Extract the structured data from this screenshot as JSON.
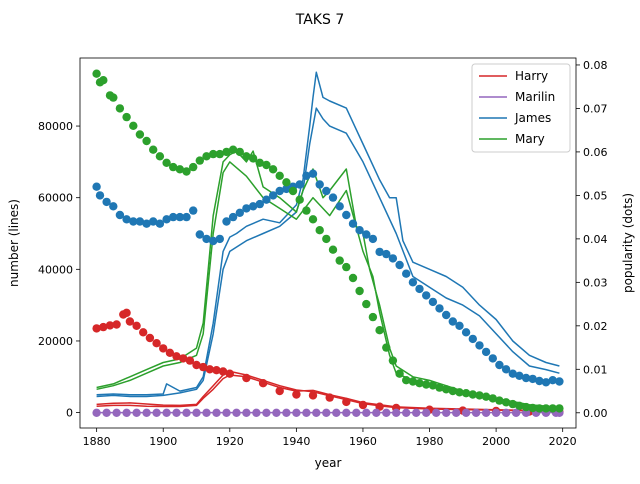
{
  "chart_data": {
    "type": "line",
    "title": "TAKS 7",
    "xlabel": "year",
    "ylabel_left": "number (lines)",
    "ylabel_right": "popularity (dots)",
    "xlim": [
      1875,
      2024
    ],
    "ylim_left": [
      -4300,
      99000
    ],
    "ylim_right": [
      -0.0035,
      0.0816
    ],
    "x_ticks": [
      1880,
      1900,
      1920,
      1940,
      1960,
      1980,
      2000,
      2020
    ],
    "y_ticks_left": [
      0,
      20000,
      40000,
      60000,
      80000
    ],
    "y_ticks_right": [
      0.0,
      0.01,
      0.02,
      0.03,
      0.04,
      0.05,
      0.06,
      0.07,
      0.08
    ],
    "x_tick_labels": [
      "1880",
      "1900",
      "1920",
      "1940",
      "1960",
      "1980",
      "2000",
      "2020"
    ],
    "y_tick_labels_left": [
      "0",
      "20000",
      "40000",
      "60000",
      "80000"
    ],
    "y_tick_labels_right": [
      "0.00",
      "0.01",
      "0.02",
      "0.03",
      "0.04",
      "0.05",
      "0.06",
      "0.07",
      "0.08"
    ],
    "legend_position": "top-right",
    "legend": [
      "Harry",
      "Marilin",
      "James",
      "Mary"
    ],
    "colors": {
      "Harry": "#d62728",
      "Marilin": "#9467bd",
      "James": "#1f77b4",
      "Mary": "#2ca02c"
    },
    "series": [
      {
        "name": "Harry",
        "color": "#d62728",
        "lines": [
          {
            "x": [
              1880,
              1885,
              1890,
              1895,
              1900,
              1905,
              1910,
              1912,
              1915,
              1918,
              1920,
              1925,
              1930,
              1935,
              1940,
              1945,
              1950,
              1955,
              1960,
              1965,
              1970,
              1980,
              1990,
              2000,
              2010,
              2020
            ],
            "y": [
              1800,
              2000,
              2000,
              1800,
              1700,
              1700,
              2000,
              4000,
              6500,
              9500,
              10500,
              10000,
              8500,
              7000,
              6000,
              6200,
              5000,
              4000,
              2800,
              2200,
              1600,
              1200,
              1000,
              800,
              600,
              500
            ]
          },
          {
            "x": [
              1880,
              1885,
              1890,
              1895,
              1900,
              1905,
              1910,
              1912,
              1915,
              1918,
              1920,
              1925,
              1930,
              1935,
              1940,
              1945,
              1950,
              1955,
              1960,
              1965,
              1970,
              1980,
              1990,
              2000,
              2010,
              2020
            ],
            "y": [
              2300,
              2600,
              2700,
              2400,
              2100,
              2000,
              2300,
              4500,
              7500,
              10500,
              11500,
              10500,
              9000,
              7500,
              6300,
              5800,
              4700,
              3600,
              2500,
              1900,
              1400,
              1000,
              850,
              700,
              500,
              400
            ]
          }
        ],
        "dots": {
          "x": [
            1880,
            1882,
            1884,
            1886,
            1888,
            1889,
            1890,
            1892,
            1894,
            1896,
            1898,
            1900,
            1902,
            1904,
            1906,
            1908,
            1910,
            1912,
            1914,
            1916,
            1918,
            1920,
            1925,
            1930,
            1935,
            1940,
            1945,
            1950,
            1955,
            1960,
            1965,
            1970,
            1980,
            1990,
            2000,
            2010,
            2019
          ],
          "y": [
            0.0194,
            0.0197,
            0.0201,
            0.0203,
            0.0226,
            0.023,
            0.021,
            0.02,
            0.0185,
            0.0172,
            0.016,
            0.0148,
            0.0138,
            0.013,
            0.0125,
            0.012,
            0.011,
            0.0105,
            0.01,
            0.0098,
            0.0095,
            0.009,
            0.008,
            0.0068,
            0.005,
            0.0042,
            0.004,
            0.0035,
            0.0025,
            0.0018,
            0.0014,
            0.0011,
            0.0007,
            0.0005,
            0.0004,
            0.0003,
            0.0002
          ]
        }
      },
      {
        "name": "Marilin",
        "color": "#9467bd",
        "lines": [
          {
            "x": [
              1880,
              1950,
              2020
            ],
            "y": [
              0,
              0,
              0
            ]
          }
        ],
        "dots": {
          "x": [
            1880,
            1883,
            1886,
            1889,
            1892,
            1895,
            1898,
            1901,
            1904,
            1907,
            1910,
            1913,
            1916,
            1919,
            1922,
            1925,
            1928,
            1931,
            1934,
            1937,
            1940,
            1943,
            1946,
            1949,
            1952,
            1955,
            1958,
            1961,
            1964,
            1967,
            1970,
            1973,
            1976,
            1979,
            1982,
            1985,
            1988,
            1991,
            1994,
            1997,
            2000,
            2003,
            2006,
            2009,
            2012,
            2015,
            2018,
            2019
          ],
          "y": [
            0,
            0,
            0,
            0,
            0,
            0,
            0,
            0,
            0,
            0,
            0,
            0,
            0,
            0,
            0,
            0,
            0,
            0,
            0,
            0,
            0,
            0,
            0,
            0,
            0,
            0,
            0,
            0,
            0,
            0,
            0,
            0,
            0,
            0,
            0,
            0,
            0,
            0,
            0,
            0,
            0,
            0,
            0,
            0,
            0,
            0,
            0,
            0
          ]
        }
      },
      {
        "name": "James",
        "color": "#1f77b4",
        "lines": [
          {
            "x": [
              1880,
              1885,
              1890,
              1895,
              1900,
              1901,
              1905,
              1910,
              1912,
              1915,
              1918,
              1920,
              1922,
              1925,
              1930,
              1935,
              1940,
              1942,
              1944,
              1945,
              1946,
              1948,
              1950,
              1955,
              1960,
              1965,
              1968,
              1970,
              1972,
              1975,
              1980,
              1985,
              1990,
              1995,
              2000,
              2005,
              2010,
              2015,
              2019
            ],
            "y": [
              5000,
              5200,
              5000,
              5000,
              5200,
              8000,
              6000,
              7000,
              10000,
              25000,
              45000,
              49000,
              50000,
              52000,
              54000,
              53000,
              58000,
              65000,
              80000,
              88000,
              95000,
              88000,
              87000,
              85000,
              75000,
              65000,
              60000,
              60000,
              48000,
              42000,
              40000,
              38000,
              35000,
              30000,
              26000,
              20000,
              16000,
              14000,
              13000
            ]
          },
          {
            "x": [
              1880,
              1885,
              1890,
              1895,
              1900,
              1905,
              1910,
              1912,
              1915,
              1918,
              1920,
              1925,
              1930,
              1935,
              1940,
              1942,
              1944,
              1946,
              1948,
              1950,
              1955,
              1960,
              1965,
              1970,
              1975,
              1980,
              1985,
              1990,
              1995,
              2000,
              2005,
              2010,
              2015,
              2019
            ],
            "y": [
              4500,
              4800,
              4500,
              4500,
              4800,
              5500,
              6500,
              9000,
              22000,
              40000,
              45000,
              48000,
              50000,
              52000,
              56000,
              62000,
              75000,
              85000,
              82000,
              80000,
              78000,
              70000,
              60000,
              50000,
              38000,
              35000,
              32000,
              30000,
              27000,
              22000,
              17000,
              13000,
              12000,
              11000
            ]
          }
        ],
        "dots": {
          "x": [
            1880,
            1881,
            1883,
            1885,
            1887,
            1889,
            1891,
            1893,
            1895,
            1897,
            1899,
            1901,
            1903,
            1905,
            1907,
            1909,
            1911,
            1913,
            1915,
            1917,
            1919,
            1921,
            1923,
            1925,
            1927,
            1929,
            1931,
            1933,
            1935,
            1937,
            1939,
            1941,
            1943,
            1945,
            1947,
            1949,
            1951,
            1953,
            1955,
            1957,
            1959,
            1961,
            1963,
            1965,
            1967,
            1969,
            1971,
            1973,
            1975,
            1977,
            1979,
            1981,
            1983,
            1985,
            1987,
            1989,
            1991,
            1993,
            1995,
            1997,
            1999,
            2001,
            2003,
            2005,
            2007,
            2009,
            2011,
            2013,
            2015,
            2017,
            2019
          ],
          "y": [
            0.052,
            0.05,
            0.0485,
            0.0475,
            0.0455,
            0.0445,
            0.044,
            0.044,
            0.0435,
            0.044,
            0.0435,
            0.0445,
            0.045,
            0.045,
            0.045,
            0.0465,
            0.041,
            0.04,
            0.0395,
            0.04,
            0.044,
            0.045,
            0.046,
            0.047,
            0.0475,
            0.048,
            0.049,
            0.05,
            0.051,
            0.0515,
            0.052,
            0.0525,
            0.0545,
            0.055,
            0.0525,
            0.051,
            0.0495,
            0.0475,
            0.0455,
            0.0435,
            0.042,
            0.041,
            0.04,
            0.037,
            0.0365,
            0.0355,
            0.034,
            0.032,
            0.03,
            0.0285,
            0.027,
            0.0255,
            0.024,
            0.0225,
            0.021,
            0.02,
            0.0185,
            0.017,
            0.0155,
            0.014,
            0.0125,
            0.011,
            0.01,
            0.009,
            0.0085,
            0.008,
            0.0078,
            0.0073,
            0.007,
            0.0075,
            0.0072
          ]
        }
      },
      {
        "name": "Mary",
        "color": "#2ca02c",
        "lines": [
          {
            "x": [
              1880,
              1885,
              1890,
              1895,
              1900,
              1905,
              1910,
              1912,
              1915,
              1918,
              1920,
              1922,
              1925,
              1927,
              1930,
              1935,
              1940,
              1942,
              1945,
              1948,
              1950,
              1955,
              1958,
              1960,
              1962,
              1965,
              1968,
              1970,
              1975,
              1980,
              1985,
              1990,
              2000,
              2010,
              2019
            ],
            "y": [
              7000,
              8000,
              10000,
              12000,
              14000,
              15000,
              18000,
              25000,
              55000,
              70000,
              72000,
              73000,
              70000,
              73000,
              63000,
              60000,
              56000,
              62000,
              68000,
              60000,
              62000,
              68000,
              52000,
              50000,
              40000,
              30000,
              18000,
              13000,
              10000,
              9000,
              7500,
              6000,
              4000,
              2200,
              1500
            ]
          },
          {
            "x": [
              1880,
              1885,
              1890,
              1895,
              1900,
              1905,
              1910,
              1912,
              1915,
              1918,
              1920,
              1925,
              1930,
              1935,
              1940,
              1945,
              1950,
              1955,
              1960,
              1963,
              1965,
              1968,
              1970,
              1975,
              1980,
              1985,
              1990,
              2000,
              2010,
              2019
            ],
            "y": [
              6500,
              7500,
              9000,
              11000,
              13000,
              14000,
              16000,
              22000,
              50000,
              67000,
              70000,
              66000,
              60000,
              57000,
              54000,
              60000,
              55000,
              62000,
              45000,
              38000,
              28000,
              16000,
              11000,
              9000,
              8000,
              7000,
              5500,
              3500,
              2000,
              1300
            ]
          }
        ],
        "dots": {
          "x": [
            1880,
            1881,
            1882,
            1884,
            1885,
            1887,
            1889,
            1891,
            1893,
            1895,
            1897,
            1899,
            1901,
            1903,
            1905,
            1907,
            1909,
            1911,
            1913,
            1915,
            1917,
            1919,
            1921,
            1923,
            1925,
            1927,
            1929,
            1931,
            1933,
            1935,
            1937,
            1939,
            1941,
            1943,
            1945,
            1947,
            1949,
            1951,
            1953,
            1955,
            1957,
            1959,
            1961,
            1963,
            1965,
            1967,
            1969,
            1971,
            1973,
            1975,
            1977,
            1979,
            1981,
            1983,
            1985,
            1987,
            1989,
            1991,
            1993,
            1995,
            1997,
            1999,
            2001,
            2003,
            2005,
            2007,
            2009,
            2011,
            2013,
            2015,
            2017,
            2019
          ],
          "y": [
            0.078,
            0.076,
            0.0765,
            0.073,
            0.0725,
            0.07,
            0.068,
            0.066,
            0.064,
            0.0625,
            0.0605,
            0.059,
            0.0575,
            0.0565,
            0.056,
            0.0555,
            0.0565,
            0.058,
            0.059,
            0.0595,
            0.0595,
            0.06,
            0.0605,
            0.06,
            0.059,
            0.0585,
            0.0575,
            0.057,
            0.056,
            0.0545,
            0.053,
            0.051,
            0.049,
            0.0465,
            0.0445,
            0.042,
            0.04,
            0.0375,
            0.035,
            0.0335,
            0.031,
            0.028,
            0.025,
            0.022,
            0.019,
            0.015,
            0.012,
            0.009,
            0.0075,
            0.0072,
            0.0068,
            0.0065,
            0.0063,
            0.0058,
            0.0054,
            0.005,
            0.0047,
            0.0045,
            0.0042,
            0.004,
            0.0037,
            0.0033,
            0.0028,
            0.0024,
            0.002,
            0.0016,
            0.0013,
            0.0011,
            0.001,
            0.001,
            0.001,
            0.001
          ]
        }
      }
    ]
  }
}
